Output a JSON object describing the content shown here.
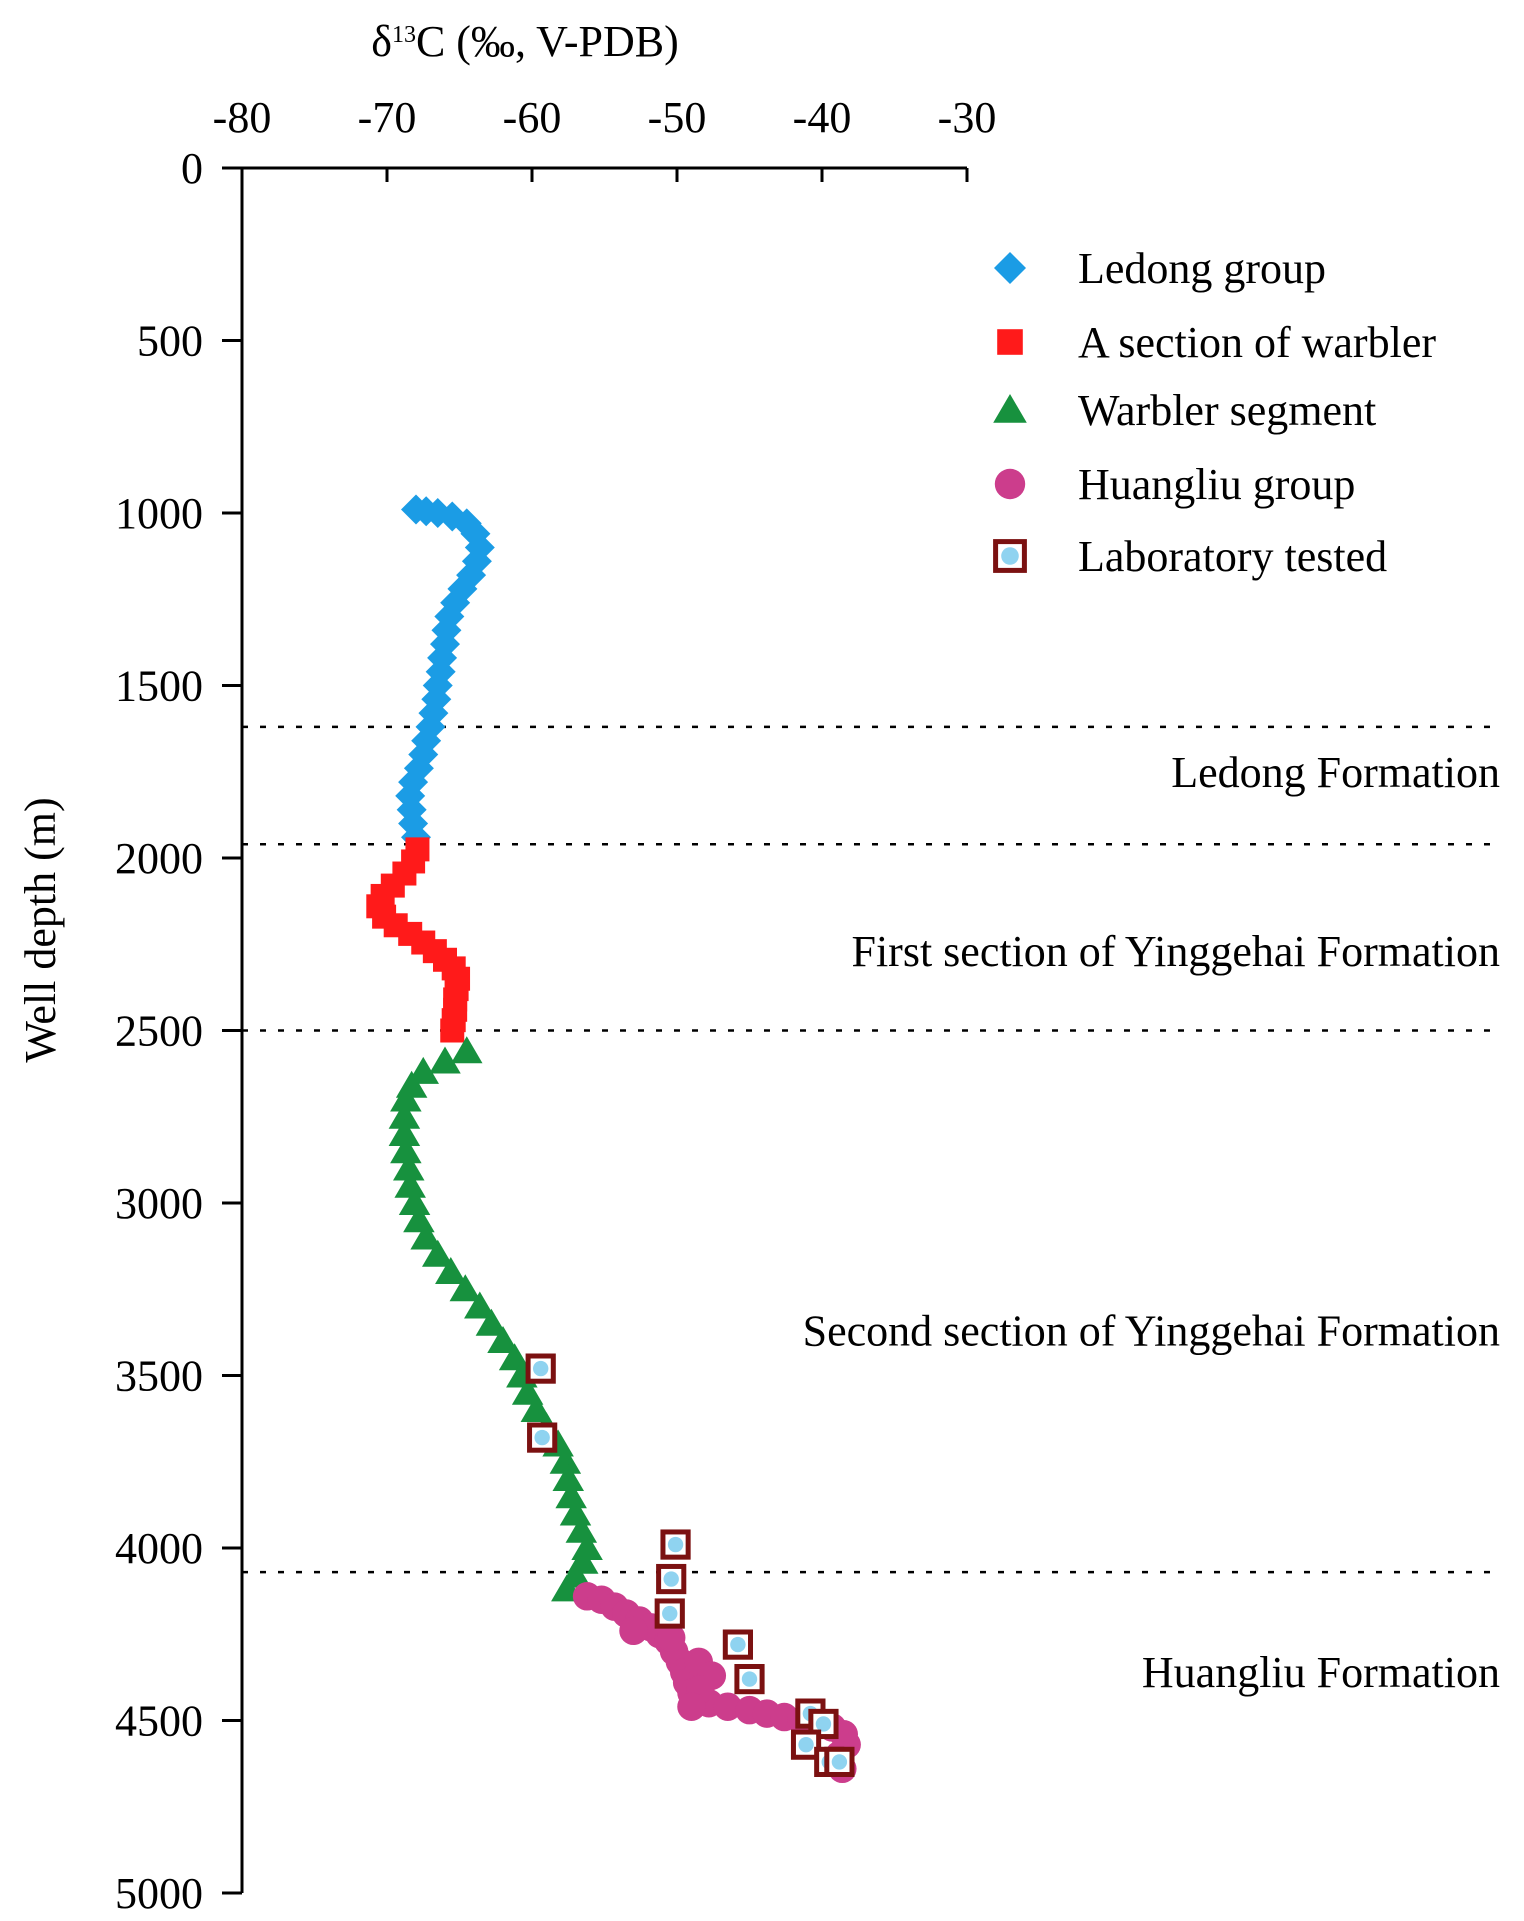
{
  "chart_data": {
    "type": "scatter",
    "title": "",
    "xlabel_parts": [
      "δ",
      "13",
      "C (‰, V-PDB)"
    ],
    "ylabel": "Well depth (m)",
    "xlim": [
      -80,
      -30
    ],
    "ylim": [
      0,
      5000
    ],
    "xticks": [
      -80,
      -70,
      -60,
      -50,
      -40,
      -30
    ],
    "yticks": [
      0,
      500,
      1000,
      1500,
      2000,
      2500,
      3000,
      3500,
      4000,
      4500,
      5000
    ],
    "x_axis_position": "top",
    "y_axis_inverted": true,
    "grid": false,
    "legend_position": "top-right",
    "series": [
      {
        "name": "Ledong group",
        "marker": "diamond",
        "color": "#1b9ce5",
        "points": [
          [
            -68,
            990
          ],
          [
            -67.3,
            995
          ],
          [
            -66.5,
            1000
          ],
          [
            -65.5,
            1010
          ],
          [
            -64.5,
            1030
          ],
          [
            -63.9,
            1060
          ],
          [
            -63.6,
            1100
          ],
          [
            -63.8,
            1140
          ],
          [
            -64.2,
            1180
          ],
          [
            -64.8,
            1220
          ],
          [
            -65.3,
            1260
          ],
          [
            -65.7,
            1300
          ],
          [
            -65.9,
            1340
          ],
          [
            -66.0,
            1380
          ],
          [
            -66.2,
            1420
          ],
          [
            -66.3,
            1460
          ],
          [
            -66.5,
            1500
          ],
          [
            -66.6,
            1540
          ],
          [
            -66.8,
            1580
          ],
          [
            -67.0,
            1620
          ],
          [
            -67.3,
            1660
          ],
          [
            -67.5,
            1700
          ],
          [
            -67.8,
            1740
          ],
          [
            -68.2,
            1780
          ],
          [
            -68.4,
            1820
          ],
          [
            -68.3,
            1860
          ],
          [
            -68.2,
            1900
          ],
          [
            -68.0,
            1940
          ]
        ]
      },
      {
        "name": "A section of warbler",
        "marker": "square",
        "color": "#ff1a1a",
        "points": [
          [
            -67.9,
            1975
          ],
          [
            -68.2,
            2010
          ],
          [
            -68.8,
            2045
          ],
          [
            -69.6,
            2080
          ],
          [
            -70.3,
            2110
          ],
          [
            -70.6,
            2140
          ],
          [
            -70.2,
            2170
          ],
          [
            -69.4,
            2195
          ],
          [
            -68.4,
            2220
          ],
          [
            -67.5,
            2245
          ],
          [
            -66.7,
            2270
          ],
          [
            -66.0,
            2295
          ],
          [
            -65.4,
            2320
          ],
          [
            -65.1,
            2350
          ],
          [
            -65.2,
            2380
          ],
          [
            -65.3,
            2410
          ],
          [
            -65.3,
            2440
          ],
          [
            -65.4,
            2470
          ],
          [
            -65.5,
            2500
          ]
        ]
      },
      {
        "name": "Warbler segment",
        "marker": "triangle",
        "color": "#17913e",
        "points": [
          [
            -64.5,
            2560
          ],
          [
            -66,
            2590
          ],
          [
            -67.5,
            2620
          ],
          [
            -68.3,
            2660
          ],
          [
            -68.7,
            2700
          ],
          [
            -68.8,
            2750
          ],
          [
            -68.8,
            2800
          ],
          [
            -68.7,
            2850
          ],
          [
            -68.5,
            2900
          ],
          [
            -68.4,
            2950
          ],
          [
            -68.1,
            3000
          ],
          [
            -67.8,
            3050
          ],
          [
            -67.3,
            3100
          ],
          [
            -66.5,
            3150
          ],
          [
            -65.6,
            3200
          ],
          [
            -64.6,
            3250
          ],
          [
            -63.6,
            3300
          ],
          [
            -62.8,
            3350
          ],
          [
            -62.0,
            3400
          ],
          [
            -61.2,
            3450
          ],
          [
            -60.7,
            3500
          ],
          [
            -60.3,
            3550
          ],
          [
            -59.7,
            3600
          ],
          [
            -59.0,
            3650
          ],
          [
            -58.2,
            3700
          ],
          [
            -57.7,
            3750
          ],
          [
            -57.5,
            3800
          ],
          [
            -57.3,
            3850
          ],
          [
            -57.0,
            3900
          ],
          [
            -56.6,
            3950
          ],
          [
            -56.2,
            4000
          ],
          [
            -56.5,
            4040
          ],
          [
            -57.0,
            4080
          ],
          [
            -57.6,
            4120
          ]
        ]
      },
      {
        "name": "Huangliu group",
        "marker": "circle",
        "color": "#cc3d8c",
        "points": [
          [
            -56.2,
            4140
          ],
          [
            -55.2,
            4150
          ],
          [
            -54.3,
            4170
          ],
          [
            -53.5,
            4190
          ],
          [
            -52.6,
            4210
          ],
          [
            -51.8,
            4230
          ],
          [
            -51.2,
            4250
          ],
          [
            -50.6,
            4270
          ],
          [
            -50.2,
            4300
          ],
          [
            -49.8,
            4330
          ],
          [
            -49.5,
            4360
          ],
          [
            -49.3,
            4390
          ],
          [
            -49.0,
            4420
          ],
          [
            -48.6,
            4440
          ],
          [
            -47.8,
            4450
          ],
          [
            -46.5,
            4460
          ],
          [
            -45.0,
            4470
          ],
          [
            -43.8,
            4480
          ],
          [
            -42.6,
            4490
          ],
          [
            -41.4,
            4500
          ],
          [
            -40.3,
            4510
          ],
          [
            -39.3,
            4520
          ],
          [
            -38.5,
            4540
          ],
          [
            -38.3,
            4570
          ],
          [
            -38.8,
            4600
          ],
          [
            -39.3,
            4620
          ],
          [
            -38.6,
            4640
          ],
          [
            -53.0,
            4240
          ],
          [
            -50.4,
            4260
          ],
          [
            -48.5,
            4330
          ],
          [
            -47.6,
            4370
          ],
          [
            -48.4,
            4410
          ],
          [
            -49.0,
            4460
          ]
        ]
      },
      {
        "name": "Laboratory tested",
        "marker": "square-dot",
        "color": "#7b1111",
        "dot_color": "#8fd3f0",
        "points": [
          [
            -59.4,
            3480
          ],
          [
            -59.3,
            3680
          ],
          [
            -50.1,
            3990
          ],
          [
            -50.4,
            4090
          ],
          [
            -50.5,
            4190
          ],
          [
            -45.8,
            4280
          ],
          [
            -45.0,
            4380
          ],
          [
            -40.8,
            4480
          ],
          [
            -39.9,
            4510
          ],
          [
            -41.1,
            4570
          ],
          [
            -39.5,
            4620
          ],
          [
            -38.8,
            4620
          ]
        ]
      }
    ],
    "formations": [
      {
        "label": "Ledong Formation",
        "boundary_depth": 1620,
        "label_depth": 1750
      },
      {
        "label": "First section of  Yinggehai Formation",
        "boundary_depth": 1960,
        "label_depth": 2270
      },
      {
        "label": "Second section of  Yinggehai Formation",
        "boundary_depth": 2500,
        "label_depth": 3370
      },
      {
        "label": "Huangliu Formation",
        "boundary_depth": 4070,
        "label_depth": 4360
      }
    ]
  }
}
